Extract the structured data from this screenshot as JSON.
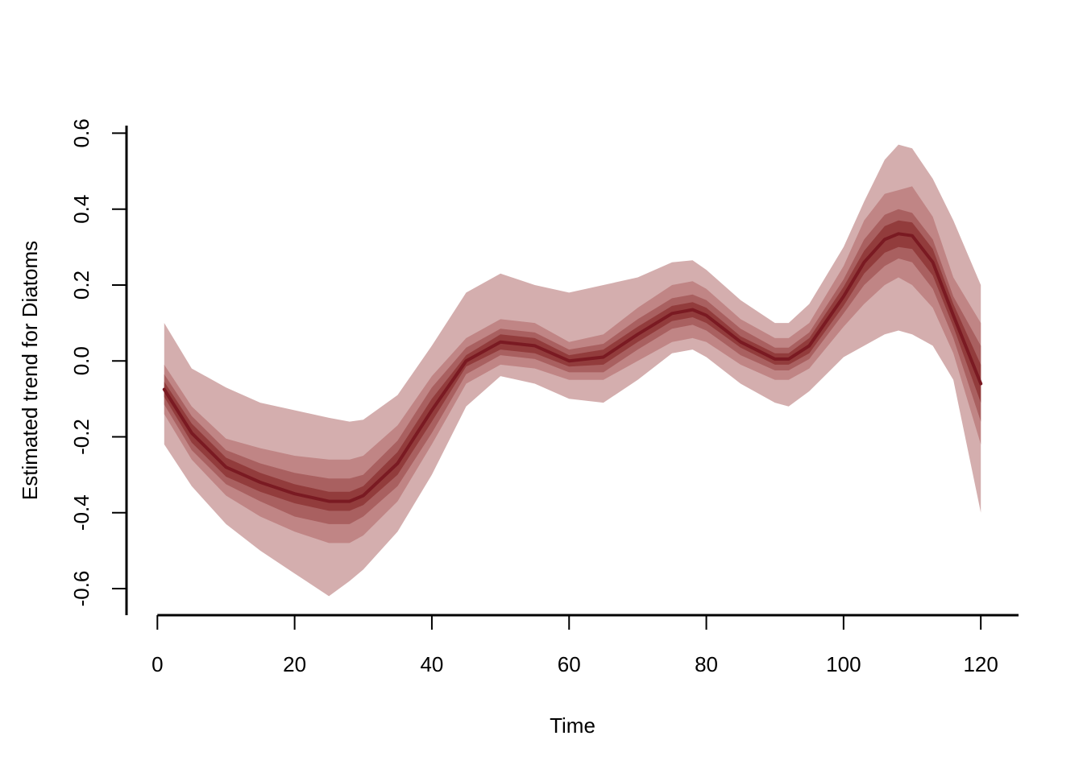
{
  "chart_data": {
    "type": "area",
    "xlabel": "Time",
    "ylabel": "Estimated trend for Diatoms",
    "xlim": [
      -4.5,
      125.5
    ],
    "ylim": [
      -0.67,
      0.62
    ],
    "x_ticks": [
      "0",
      "20",
      "40",
      "60",
      "80",
      "100",
      "120"
    ],
    "y_ticks": [
      "-0.6",
      "-0.4",
      "-0.2",
      "0.0",
      "0.2",
      "0.4",
      "0.6"
    ],
    "grid": false,
    "legend": "none",
    "x": [
      1,
      5,
      10,
      15,
      20,
      25,
      28,
      30,
      35,
      40,
      45,
      50,
      55,
      60,
      65,
      70,
      75,
      78,
      80,
      85,
      90,
      92,
      95,
      100,
      103,
      106,
      108,
      110,
      113,
      116,
      120
    ],
    "series": [
      {
        "name": "",
        "role": "median",
        "values": [
          -0.075,
          -0.19,
          -0.28,
          -0.32,
          -0.35,
          -0.37,
          -0.37,
          -0.355,
          -0.27,
          -0.13,
          0.0,
          0.05,
          0.04,
          0.0,
          0.01,
          0.07,
          0.125,
          0.135,
          0.12,
          0.05,
          0.005,
          0.005,
          0.04,
          0.17,
          0.26,
          0.32,
          0.335,
          0.33,
          0.26,
          0.12,
          -0.06
        ]
      },
      {
        "name": "",
        "role": "band",
        "lower": [
          -0.22,
          -0.33,
          -0.43,
          -0.5,
          -0.56,
          -0.62,
          -0.58,
          -0.55,
          -0.45,
          -0.3,
          -0.12,
          -0.04,
          -0.06,
          -0.1,
          -0.11,
          -0.05,
          0.02,
          0.03,
          0.01,
          -0.06,
          -0.11,
          -0.12,
          -0.08,
          0.01,
          0.04,
          0.07,
          0.08,
          0.07,
          0.04,
          -0.05,
          -0.4
        ],
        "upper": [
          0.1,
          -0.02,
          -0.07,
          -0.11,
          -0.13,
          -0.15,
          -0.16,
          -0.155,
          -0.09,
          0.04,
          0.18,
          0.23,
          0.2,
          0.18,
          0.2,
          0.22,
          0.26,
          0.265,
          0.24,
          0.16,
          0.1,
          0.1,
          0.15,
          0.3,
          0.42,
          0.53,
          0.57,
          0.56,
          0.48,
          0.37,
          0.2
        ]
      },
      {
        "name": "",
        "role": "band",
        "lower": [
          -0.14,
          -0.26,
          -0.355,
          -0.41,
          -0.45,
          -0.48,
          -0.48,
          -0.46,
          -0.37,
          -0.22,
          -0.06,
          -0.01,
          -0.02,
          -0.05,
          -0.05,
          0.0,
          0.05,
          0.06,
          0.05,
          -0.01,
          -0.05,
          -0.05,
          -0.02,
          0.09,
          0.15,
          0.2,
          0.22,
          0.2,
          0.14,
          0.02,
          -0.22
        ]
      },
      {
        "name": "",
        "role": "band",
        "lower": [
          -0.115,
          -0.235,
          -0.325,
          -0.37,
          -0.41,
          -0.43,
          -0.43,
          -0.41,
          -0.33,
          -0.19,
          -0.035,
          0.015,
          0.005,
          -0.03,
          -0.03,
          0.03,
          0.085,
          0.095,
          0.08,
          0.015,
          -0.025,
          -0.025,
          0.005,
          0.125,
          0.2,
          0.25,
          0.27,
          0.26,
          0.19,
          0.06,
          -0.16
        ],
        "upper": [
          -0.035,
          -0.145,
          -0.235,
          -0.27,
          -0.295,
          -0.31,
          -0.31,
          -0.3,
          -0.21,
          -0.07,
          0.035,
          0.085,
          0.075,
          0.03,
          0.045,
          0.11,
          0.165,
          0.175,
          0.16,
          0.085,
          0.035,
          0.035,
          0.075,
          0.215,
          0.32,
          0.385,
          0.4,
          0.39,
          0.32,
          0.17,
          0.04
        ]
      },
      {
        "name": "",
        "role": "band",
        "lower": [
          -0.095,
          -0.215,
          -0.305,
          -0.345,
          -0.375,
          -0.395,
          -0.395,
          -0.38,
          -0.3,
          -0.16,
          -0.015,
          0.03,
          0.02,
          -0.015,
          -0.01,
          0.05,
          0.105,
          0.115,
          0.1,
          0.035,
          -0.01,
          -0.01,
          0.02,
          0.145,
          0.23,
          0.285,
          0.3,
          0.295,
          0.225,
          0.09,
          -0.11
        ],
        "upper": [
          -0.055,
          -0.165,
          -0.255,
          -0.295,
          -0.325,
          -0.345,
          -0.345,
          -0.33,
          -0.24,
          -0.1,
          0.015,
          0.07,
          0.06,
          0.015,
          0.03,
          0.09,
          0.145,
          0.155,
          0.14,
          0.065,
          0.02,
          0.02,
          0.06,
          0.195,
          0.29,
          0.355,
          0.37,
          0.365,
          0.295,
          0.15,
          -0.01
        ]
      }
    ],
    "colors": {
      "band_outer": "#d4aeae",
      "band_2": "#c08585",
      "band_3": "#a96060",
      "band_inner": "#923c3c",
      "median_line": "#7a1a22",
      "axis": "#000000"
    }
  }
}
